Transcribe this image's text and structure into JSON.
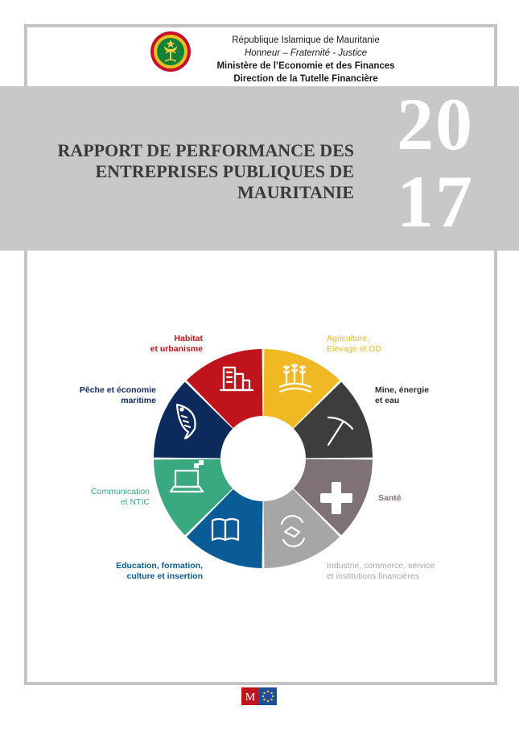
{
  "header": {
    "country": "République Islamique de Mauritanie",
    "motto": "Honneur – Fraternité - Justice",
    "ministry": "Ministère de l’Economie et des Finances",
    "direction": "Direction de la Tutelle Financière"
  },
  "title": {
    "line1": "RAPPORT DE PERFORMANCE DES",
    "line2": "ENTREPRISES PUBLIQUES DE",
    "line3": "MAURITANIE"
  },
  "year": {
    "part1": "20",
    "part2": "17"
  },
  "sectors": [
    {
      "label_line1": "Habitat",
      "label_line2": "et urbanisme",
      "color": "#c0141c",
      "icon": "buildings-icon"
    },
    {
      "label_line1": "Agriculture,",
      "label_line2": "Elevage et DD",
      "color": "#f0b822",
      "icon": "wheat-field-icon"
    },
    {
      "label_line1": "Mine, énergie",
      "label_line2": "et eau",
      "color": "#3d3d3d",
      "icon": "pickaxe-icon"
    },
    {
      "label_line1": "Santé",
      "label_line2": "",
      "color": "#7f7277",
      "icon": "health-cross-icon"
    },
    {
      "label_line1": "Industrie, commerce, service",
      "label_line2": "et institutions financières",
      "color": "#a6a6a6",
      "icon": "handshake-icon"
    },
    {
      "label_line1": "Education, formation,",
      "label_line2": "culture et insertion",
      "color": "#0a5c96",
      "icon": "open-book-icon"
    },
    {
      "label_line1": "Communication",
      "label_line2": "et NTIC",
      "color": "#3aa980",
      "icon": "laptop-icon"
    },
    {
      "label_line1": "Pêche et économie",
      "label_line2": "maritime",
      "color": "#0d2a5c",
      "icon": "fish-icon"
    }
  ],
  "footer": {
    "logo_letter": "M"
  }
}
